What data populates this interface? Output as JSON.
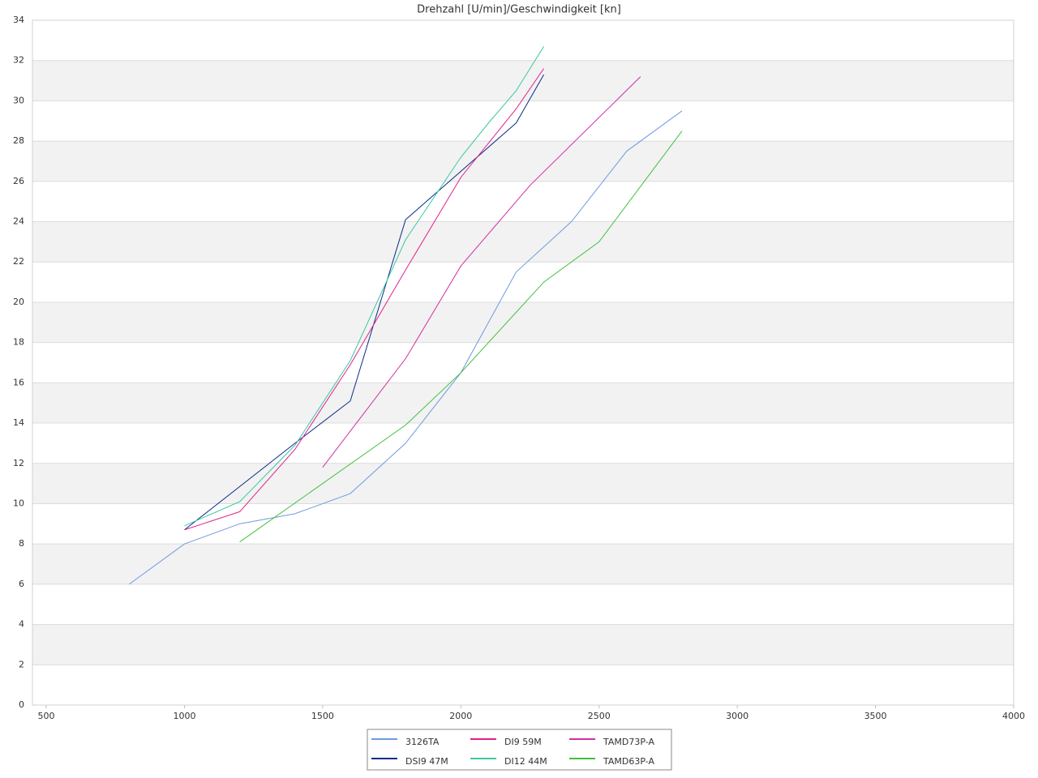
{
  "chart_data": {
    "type": "line",
    "title": "Drehzahl [U/min]/Geschwindigkeit [kn]",
    "xlim": [
      450,
      4000
    ],
    "xticks": [
      500,
      1000,
      1500,
      2000,
      2500,
      3000,
      3500,
      4000
    ],
    "ylim": [
      0,
      34
    ],
    "yticks": [
      0,
      2,
      4,
      6,
      8,
      10,
      12,
      14,
      16,
      18,
      20,
      22,
      24,
      26,
      28,
      30,
      32,
      34
    ],
    "grid": true,
    "legend": "bottom",
    "series": [
      {
        "name": "3126TA",
        "color": "#6f9ae0",
        "x": [
          800,
          1000,
          1200,
          1400,
          1600,
          1800,
          2000,
          2200,
          2400,
          2600,
          2800
        ],
        "values": [
          6,
          8,
          9,
          9.5,
          10.5,
          13,
          16.5,
          21.5,
          24,
          27.5,
          29.5
        ]
      },
      {
        "name": "DSI9 47M",
        "color": "#0a2c8a",
        "x": [
          1000,
          1400,
          1600,
          1800,
          2200,
          2300
        ],
        "values": [
          8.7,
          13,
          15.1,
          24.1,
          28.9,
          31.3
        ]
      },
      {
        "name": "DI9 59M",
        "color": "#e0218a",
        "x": [
          1000,
          1200,
          1400,
          1600,
          1800,
          2000,
          2200,
          2300
        ],
        "values": [
          8.7,
          9.6,
          12.7,
          16.9,
          21.6,
          26.2,
          29.6,
          31.6
        ]
      },
      {
        "name": "DI12 44M",
        "color": "#3cc8a0",
        "x": [
          1000,
          1200,
          1400,
          1600,
          1800,
          2000,
          2100,
          2200,
          2300
        ],
        "values": [
          8.9,
          10.1,
          12.9,
          17.1,
          23.1,
          27.2,
          28.9,
          30.5,
          32.7
        ]
      },
      {
        "name": "TAMD73P-A",
        "color": "#d030a0",
        "x": [
          1500,
          1800,
          2000,
          2250,
          2650
        ],
        "values": [
          11.8,
          17.2,
          21.8,
          25.8,
          31.2
        ]
      },
      {
        "name": "TAMD63P-A",
        "color": "#40c040",
        "x": [
          1200,
          1800,
          2000,
          2300,
          2500,
          2800
        ],
        "values": [
          8.1,
          13.9,
          16.5,
          21,
          23,
          28.5
        ]
      }
    ]
  }
}
